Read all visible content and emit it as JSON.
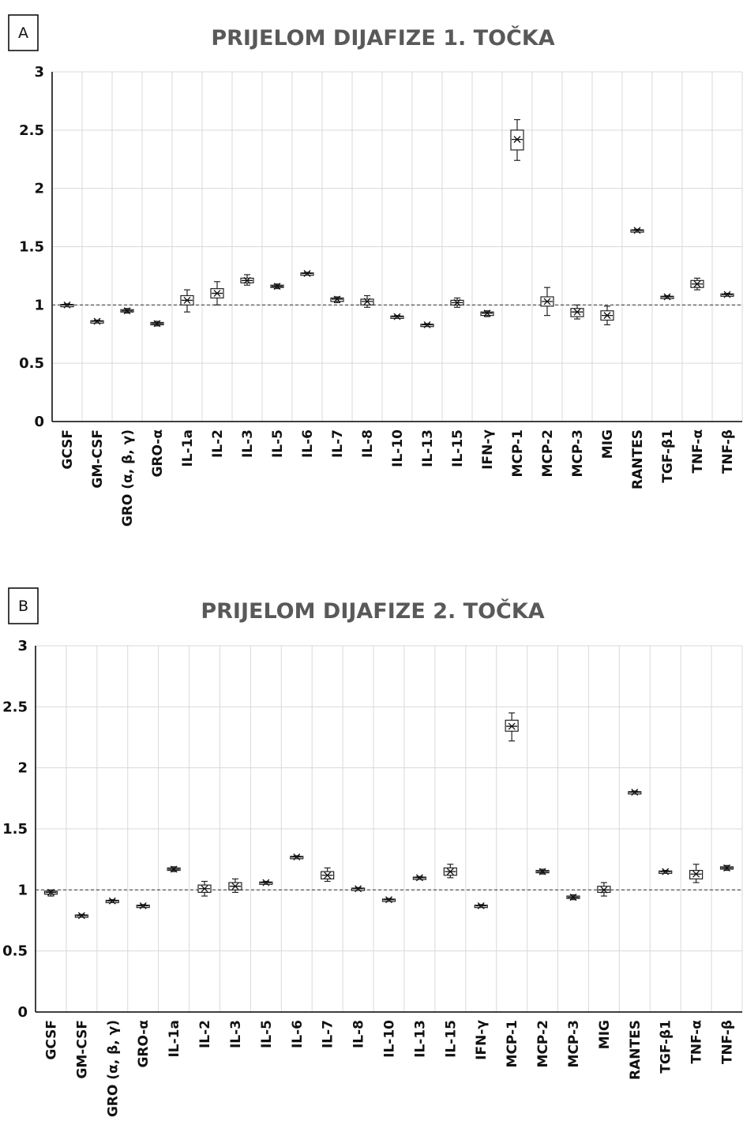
{
  "chart_data": [
    {
      "panel_label": "A",
      "type": "box",
      "title": "PRIJELOM DIJAFIZE 1. TOČKA",
      "ylim": [
        0,
        3
      ],
      "yticks": [
        "0",
        "0.5",
        "1",
        "1.5",
        "2",
        "2.5",
        "3"
      ],
      "reference_line": 1,
      "grid": true,
      "categories": [
        "GCSF",
        "GM-CSF",
        "GRO (α, β, γ)",
        "GRO-α",
        "IL-1a",
        "IL-2",
        "IL-3",
        "IL-5",
        "IL-6",
        "IL-7",
        "IL-8",
        "IL-10",
        "IL-13",
        "IL-15",
        "IFN-γ",
        "MCP-1",
        "MCP-2",
        "MCP-3",
        "MIG",
        "RANTES",
        "TGF-β1",
        "TNF-α",
        "TNF-β"
      ],
      "values": [
        1.0,
        0.86,
        0.95,
        0.84,
        1.04,
        1.1,
        1.21,
        1.16,
        1.27,
        1.05,
        1.03,
        0.9,
        0.83,
        1.02,
        0.93,
        2.42,
        1.03,
        0.94,
        0.91,
        1.64,
        1.07,
        1.18,
        1.09
      ],
      "q1": [
        0.995,
        0.855,
        0.94,
        0.83,
        1.0,
        1.06,
        1.19,
        1.15,
        1.265,
        1.03,
        1.0,
        0.895,
        0.825,
        1.0,
        0.91,
        2.33,
        0.99,
        0.9,
        0.87,
        1.635,
        1.065,
        1.15,
        1.085
      ],
      "q3": [
        1.005,
        0.865,
        0.96,
        0.85,
        1.08,
        1.14,
        1.23,
        1.17,
        1.275,
        1.06,
        1.05,
        0.905,
        0.835,
        1.04,
        0.94,
        2.5,
        1.07,
        0.97,
        0.95,
        1.645,
        1.075,
        1.21,
        1.095
      ],
      "whisker_low": [
        0.99,
        0.85,
        0.93,
        0.82,
        0.94,
        1.0,
        1.17,
        1.14,
        1.26,
        1.02,
        0.98,
        0.89,
        0.82,
        0.98,
        0.9,
        2.24,
        0.91,
        0.88,
        0.83,
        1.63,
        1.06,
        1.13,
        1.08
      ],
      "whisker_high": [
        1.01,
        0.87,
        0.97,
        0.86,
        1.13,
        1.2,
        1.26,
        1.18,
        1.28,
        1.07,
        1.08,
        0.91,
        0.84,
        1.06,
        0.95,
        2.59,
        1.15,
        1.0,
        0.99,
        1.65,
        1.08,
        1.23,
        1.1
      ]
    },
    {
      "panel_label": "B",
      "type": "box",
      "title": "PRIJELOM DIJAFIZE 2. TOČKA",
      "ylim": [
        0,
        3
      ],
      "yticks": [
        "0",
        "0.5",
        "1",
        "1.5",
        "2",
        "2.5",
        "3"
      ],
      "reference_line": 1,
      "grid": true,
      "categories": [
        "GCSF",
        "GM-CSF",
        "GRO (α, β, γ)",
        "GRO-α",
        "IL-1a",
        "IL-2",
        "IL-3",
        "IL-5",
        "IL-6",
        "IL-7",
        "IL-8",
        "IL-10",
        "IL-13",
        "IL-15",
        "IFN-γ",
        "MCP-1",
        "MCP-2",
        "MCP-3",
        "MIG",
        "RANTES",
        "TGF-β1",
        "TNF-α",
        "TNF-β"
      ],
      "values": [
        0.98,
        0.79,
        0.91,
        0.87,
        1.17,
        1.01,
        1.03,
        1.06,
        1.27,
        1.12,
        1.01,
        0.92,
        1.1,
        1.15,
        0.87,
        2.34,
        1.15,
        0.94,
        1.0,
        1.8,
        1.15,
        1.13,
        1.18
      ],
      "q1": [
        0.965,
        0.785,
        0.905,
        0.865,
        1.16,
        0.98,
        1.0,
        1.055,
        1.265,
        1.09,
        1.005,
        0.915,
        1.095,
        1.12,
        0.865,
        2.3,
        1.14,
        0.93,
        0.98,
        1.795,
        1.145,
        1.09,
        1.17
      ],
      "q3": [
        0.99,
        0.795,
        0.915,
        0.875,
        1.18,
        1.04,
        1.06,
        1.065,
        1.275,
        1.15,
        1.015,
        0.925,
        1.105,
        1.18,
        0.875,
        2.39,
        1.16,
        0.95,
        1.03,
        1.805,
        1.155,
        1.16,
        1.19
      ],
      "whisker_low": [
        0.95,
        0.78,
        0.9,
        0.86,
        1.15,
        0.95,
        0.98,
        1.05,
        1.26,
        1.07,
        1.0,
        0.91,
        1.09,
        1.1,
        0.86,
        2.22,
        1.13,
        0.92,
        0.95,
        1.79,
        1.14,
        1.06,
        1.16
      ],
      "whisker_high": [
        1.0,
        0.8,
        0.92,
        0.88,
        1.19,
        1.07,
        1.09,
        1.07,
        1.28,
        1.18,
        1.02,
        0.93,
        1.11,
        1.21,
        0.88,
        2.45,
        1.17,
        0.96,
        1.06,
        1.81,
        1.16,
        1.21,
        1.2
      ]
    }
  ]
}
